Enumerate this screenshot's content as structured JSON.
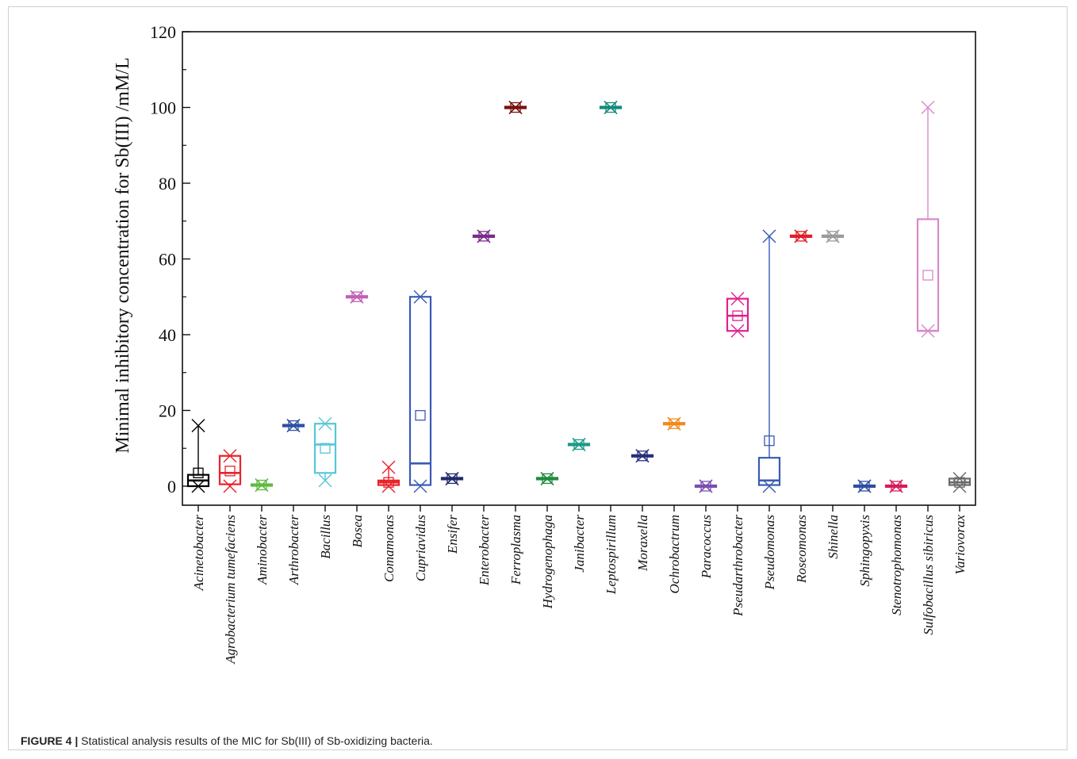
{
  "figure": {
    "label": "FIGURE 4 |",
    "caption": "Statistical analysis results of the MIC for Sb(III) of Sb-oxidizing bacteria."
  },
  "chart_data": {
    "type": "box",
    "title": "",
    "xlabel": "",
    "ylabel": "Minimal inhibitory concentration for Sb(III) /mM/L",
    "ylim": [
      -5,
      120
    ],
    "yticks": [
      0,
      20,
      40,
      60,
      80,
      100,
      120
    ],
    "grid": false,
    "legend": "none",
    "categories": [
      {
        "name": "Acinetobacter",
        "color": "#000000",
        "q1": 0,
        "median": 1.5,
        "q3": 3,
        "mean": 3.5,
        "min": 0,
        "max": 16
      },
      {
        "name": "Agrobacterium tumefaciens",
        "color": "#e8232b",
        "q1": 0.5,
        "median": 3.5,
        "q3": 8,
        "mean": 4,
        "min": 0,
        "max": 8
      },
      {
        "name": "Aminobacter",
        "color": "#5dbb3f",
        "q1": 0.3,
        "median": 0.3,
        "q3": 0.3,
        "mean": 0.3,
        "min": 0.3,
        "max": 0.3
      },
      {
        "name": "Arthrobacter",
        "color": "#2e4fa3",
        "q1": 16,
        "median": 16,
        "q3": 16,
        "mean": 16,
        "min": 16,
        "max": 16
      },
      {
        "name": "Bacillus",
        "color": "#56c7d6",
        "q1": 3.5,
        "median": 11,
        "q3": 16.5,
        "mean": 10,
        "min": 1.5,
        "max": 16.5
      },
      {
        "name": "Bosea",
        "color": "#c160b5",
        "q1": 50,
        "median": 50,
        "q3": 50,
        "mean": 50,
        "min": 50,
        "max": 50
      },
      {
        "name": "Comamonas",
        "color": "#e8232b",
        "q1": 0.3,
        "median": 1,
        "q3": 1.5,
        "mean": 1,
        "min": 0,
        "max": 5
      },
      {
        "name": "Cupriavidus",
        "color": "#3a5ab5",
        "q1": 0.3,
        "median": 6,
        "q3": 50,
        "mean": 18.7,
        "min": 0,
        "max": 50
      },
      {
        "name": "Ensifer",
        "color": "#1f2a6b",
        "q1": 2,
        "median": 2,
        "q3": 2,
        "mean": 2,
        "min": 2,
        "max": 2
      },
      {
        "name": "Enterobacter",
        "color": "#7b2a8c",
        "q1": 66,
        "median": 66,
        "q3": 66,
        "mean": 66,
        "min": 66,
        "max": 66
      },
      {
        "name": "Ferroplasma",
        "color": "#7a1010",
        "q1": 100,
        "median": 100,
        "q3": 100,
        "mean": 100,
        "min": 100,
        "max": 100
      },
      {
        "name": "Hydrogenophaga",
        "color": "#1f8a3e",
        "q1": 2,
        "median": 2,
        "q3": 2,
        "mean": 2,
        "min": 2,
        "max": 2
      },
      {
        "name": "Janibacter",
        "color": "#1b9a8a",
        "q1": 11,
        "median": 11,
        "q3": 11,
        "mean": 11,
        "min": 11,
        "max": 11
      },
      {
        "name": "Leptospirillum",
        "color": "#138a7a",
        "q1": 100,
        "median": 100,
        "q3": 100,
        "mean": 100,
        "min": 100,
        "max": 100
      },
      {
        "name": "Moraxella",
        "color": "#262f7a",
        "q1": 8,
        "median": 8,
        "q3": 8,
        "mean": 8,
        "min": 8,
        "max": 8
      },
      {
        "name": "Ochrobactrum",
        "color": "#f08a1c",
        "q1": 16.5,
        "median": 16.5,
        "q3": 16.5,
        "mean": 16.5,
        "min": 16.5,
        "max": 16.5
      },
      {
        "name": "Paracoccus",
        "color": "#7a4fb0",
        "q1": 0,
        "median": 0,
        "q3": 0,
        "mean": 0,
        "min": 0,
        "max": 0
      },
      {
        "name": "Pseudarthrobacter",
        "color": "#e21f8e",
        "q1": 41,
        "median": 45,
        "q3": 49.5,
        "mean": 45,
        "min": 41,
        "max": 49.5
      },
      {
        "name": "Pseudomonas",
        "color": "#3a5ab5",
        "q1": 0.3,
        "median": 1.5,
        "q3": 7.5,
        "mean": 12,
        "min": 0,
        "max": 66
      },
      {
        "name": "Roseomonas",
        "color": "#e01e2b",
        "q1": 66,
        "median": 66,
        "q3": 66,
        "mean": 66,
        "min": 66,
        "max": 66
      },
      {
        "name": "Shinella",
        "color": "#9a9a9a",
        "q1": 66,
        "median": 66,
        "q3": 66,
        "mean": 66,
        "min": 66,
        "max": 66
      },
      {
        "name": "Sphingopyxis",
        "color": "#2e4fa3",
        "q1": 0,
        "median": 0,
        "q3": 0,
        "mean": 0,
        "min": 0,
        "max": 0
      },
      {
        "name": "Stenotrophomonas",
        "color": "#d81b5a",
        "q1": 0,
        "median": 0,
        "q3": 0,
        "mean": 0,
        "min": 0,
        "max": 0
      },
      {
        "name": "Sulfobacillus sibiricus",
        "color": "#d88ac8",
        "q1": 41,
        "median": 41,
        "q3": 70.5,
        "mean": 55.7,
        "min": 41,
        "max": 100
      },
      {
        "name": "Variovorax",
        "color": "#6a6a6a",
        "q1": 0.3,
        "median": 1,
        "q3": 2,
        "mean": 1,
        "min": 0,
        "max": 2
      }
    ]
  }
}
